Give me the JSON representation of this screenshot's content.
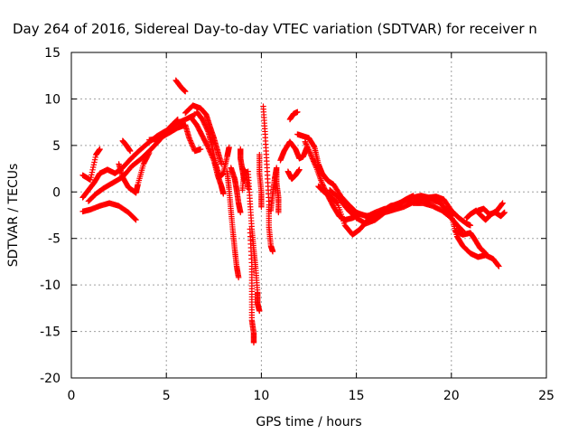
{
  "chart_data": {
    "type": "scatter",
    "title": "Day 264 of 2016, Sidereal Day-to-day VTEC variation (SDTVAR) for receiver n",
    "xlabel": "GPS time / hours",
    "ylabel": "SDTVAR / TECUs",
    "xlim": [
      0,
      25
    ],
    "ylim": [
      -20,
      15
    ],
    "xticks": [
      0,
      5,
      10,
      15,
      20,
      25
    ],
    "yticks": [
      -20,
      -15,
      -10,
      -5,
      0,
      5,
      10,
      15
    ],
    "xtick_labels": [
      "0",
      "5",
      "10",
      "15",
      "20",
      "25"
    ],
    "ytick_labels": [
      "-20",
      "-15",
      "-10",
      "-5",
      "0",
      "5",
      "10",
      "15"
    ],
    "grid": true,
    "marker": "plus",
    "color": "#ff0000",
    "series": [
      {
        "name": "",
        "tracks": [
          [
            [
              0.6,
              -2.1
            ],
            [
              1.0,
              -1.9
            ],
            [
              1.5,
              -1.5
            ],
            [
              2.0,
              -1.2
            ],
            [
              2.5,
              -1.5
            ],
            [
              3.0,
              -2.2
            ],
            [
              3.4,
              -3.0
            ]
          ],
          [
            [
              0.6,
              -0.6
            ],
            [
              0.9,
              0.2
            ],
            [
              1.2,
              1.0
            ],
            [
              1.5,
              2.0
            ],
            [
              1.9,
              2.4
            ],
            [
              2.3,
              2.0
            ],
            [
              2.7,
              2.6
            ],
            [
              3.1,
              3.5
            ],
            [
              3.5,
              4.3
            ],
            [
              4.0,
              5.2
            ],
            [
              4.5,
              6.0
            ],
            [
              5.0,
              6.6
            ],
            [
              5.5,
              7.3
            ],
            [
              6.0,
              7.8
            ],
            [
              6.5,
              8.3
            ]
          ],
          [
            [
              0.9,
              -1.0
            ],
            [
              1.3,
              -0.2
            ],
            [
              1.7,
              0.4
            ],
            [
              2.2,
              1.0
            ],
            [
              2.7,
              1.6
            ],
            [
              3.2,
              2.8
            ],
            [
              3.7,
              3.6
            ],
            [
              4.2,
              4.6
            ],
            [
              4.7,
              5.7
            ],
            [
              5.2,
              7.0
            ],
            [
              5.6,
              7.8
            ]
          ],
          [
            [
              0.6,
              1.8
            ],
            [
              1.0,
              1.3
            ],
            [
              1.3,
              4.0
            ],
            [
              1.5,
              4.6
            ]
          ],
          [
            [
              2.5,
              3.0
            ],
            [
              2.7,
              1.6
            ],
            [
              3.0,
              0.5
            ],
            [
              3.4,
              -0.1
            ],
            [
              3.5,
              0.8
            ],
            [
              3.8,
              3.0
            ],
            [
              4.1,
              4.2
            ]
          ],
          [
            [
              2.7,
              5.5
            ],
            [
              2.9,
              5.0
            ],
            [
              3.1,
              4.4
            ]
          ],
          [
            [
              4.1,
              5.6
            ],
            [
              4.6,
              5.7
            ],
            [
              5.1,
              6.3
            ],
            [
              5.6,
              6.9
            ],
            [
              6.0,
              7.2
            ],
            [
              6.2,
              5.8
            ],
            [
              6.5,
              4.4
            ],
            [
              6.8,
              4.6
            ]
          ],
          [
            [
              5.5,
              12.0
            ],
            [
              5.8,
              11.2
            ],
            [
              6.0,
              10.8
            ]
          ],
          [
            [
              6.0,
              8.5
            ],
            [
              6.4,
              9.3
            ],
            [
              6.8,
              9.0
            ],
            [
              7.1,
              8.3
            ],
            [
              7.3,
              7.0
            ],
            [
              7.5,
              5.8
            ],
            [
              7.7,
              4.4
            ],
            [
              7.9,
              3.0
            ]
          ],
          [
            [
              6.3,
              8.0
            ],
            [
              6.6,
              7.2
            ],
            [
              6.9,
              6.0
            ],
            [
              7.2,
              4.8
            ],
            [
              7.5,
              3.4
            ],
            [
              7.7,
              1.8
            ],
            [
              7.9,
              0.6
            ],
            [
              8.0,
              -0.2
            ]
          ],
          [
            [
              6.6,
              8.6
            ],
            [
              6.9,
              7.8
            ],
            [
              7.2,
              6.5
            ],
            [
              7.4,
              5.0
            ],
            [
              7.6,
              3.0
            ],
            [
              7.8,
              1.6
            ],
            [
              8.0,
              2.0
            ],
            [
              8.2,
              3.8
            ],
            [
              8.3,
              4.8
            ]
          ],
          [
            [
              8.2,
              2.2
            ],
            [
              8.3,
              0.3
            ],
            [
              8.4,
              -2.0
            ],
            [
              8.5,
              -4.2
            ],
            [
              8.6,
              -6.2
            ],
            [
              8.7,
              -8.0
            ],
            [
              8.8,
              -9.2
            ]
          ],
          [
            [
              8.4,
              2.6
            ],
            [
              8.6,
              1.4
            ],
            [
              8.7,
              0.2
            ],
            [
              8.8,
              -1.2
            ],
            [
              8.9,
              -2.2
            ]
          ],
          [
            [
              8.9,
              4.6
            ],
            [
              8.9,
              3.6
            ],
            [
              9.0,
              2.4
            ],
            [
              9.1,
              1.2
            ]
          ],
          [
            [
              9.0,
              0.2
            ],
            [
              9.1,
              2.4
            ],
            [
              9.2,
              2.0
            ],
            [
              9.3,
              0.4
            ]
          ],
          [
            [
              9.3,
              2.2
            ],
            [
              9.4,
              -1.0
            ],
            [
              9.5,
              -4.0
            ],
            [
              9.6,
              -6.2
            ],
            [
              9.7,
              -8.2
            ],
            [
              9.8,
              -10.8
            ],
            [
              9.8,
              -12.0
            ],
            [
              9.9,
              -12.8
            ]
          ],
          [
            [
              9.4,
              -4.0
            ],
            [
              9.5,
              -8.0
            ],
            [
              9.5,
              -11.0
            ],
            [
              9.5,
              -13.8
            ],
            [
              9.6,
              -15.2
            ],
            [
              9.6,
              -16.2
            ]
          ],
          [
            [
              9.9,
              4.0
            ],
            [
              9.9,
              2.0
            ],
            [
              10.0,
              0.0
            ],
            [
              10.0,
              -1.6
            ]
          ],
          [
            [
              10.1,
              9.2
            ],
            [
              10.2,
              6.2
            ],
            [
              10.3,
              2.6
            ],
            [
              10.4,
              -1.4
            ],
            [
              10.4,
              -3.8
            ],
            [
              10.5,
              -5.8
            ],
            [
              10.6,
              -6.4
            ]
          ],
          [
            [
              10.5,
              -2.0
            ],
            [
              10.6,
              -0.2
            ],
            [
              10.7,
              1.4
            ],
            [
              10.8,
              2.6
            ],
            [
              10.8,
              1.0
            ],
            [
              10.9,
              -0.6
            ],
            [
              10.9,
              -2.2
            ]
          ],
          [
            [
              11.0,
              3.4
            ],
            [
              11.2,
              4.4
            ],
            [
              11.5,
              5.4
            ],
            [
              11.8,
              4.6
            ],
            [
              12.0,
              3.6
            ],
            [
              12.2,
              3.8
            ],
            [
              12.4,
              4.8
            ]
          ],
          [
            [
              11.4,
              2.2
            ],
            [
              11.6,
              1.4
            ],
            [
              11.8,
              1.8
            ],
            [
              12.0,
              2.4
            ]
          ],
          [
            [
              11.5,
              7.8
            ],
            [
              11.7,
              8.4
            ],
            [
              11.9,
              8.6
            ]
          ],
          [
            [
              11.9,
              6.2
            ],
            [
              12.2,
              6.0
            ],
            [
              12.5,
              5.8
            ],
            [
              12.8,
              4.8
            ],
            [
              13.0,
              3.0
            ],
            [
              13.2,
              2.0
            ],
            [
              13.5,
              1.2
            ],
            [
              13.8,
              0.8
            ],
            [
              14.2,
              -0.5
            ],
            [
              14.6,
              -1.4
            ],
            [
              15.0,
              -2.2
            ],
            [
              15.5,
              -2.6
            ],
            [
              16.0,
              -2.4
            ],
            [
              16.5,
              -2.0
            ],
            [
              17.0,
              -1.6
            ]
          ],
          [
            [
              12.3,
              5.4
            ],
            [
              12.6,
              4.0
            ],
            [
              12.9,
              2.6
            ],
            [
              13.2,
              0.9
            ],
            [
              13.5,
              -0.4
            ],
            [
              13.8,
              -1.6
            ],
            [
              14.1,
              -2.6
            ],
            [
              14.4,
              -3.0
            ],
            [
              14.8,
              -2.8
            ],
            [
              15.2,
              -2.4
            ],
            [
              15.6,
              -2.6
            ],
            [
              16.0,
              -2.2
            ],
            [
              16.5,
              -1.8
            ]
          ],
          [
            [
              13.0,
              0.6
            ],
            [
              13.3,
              0.0
            ],
            [
              13.6,
              -0.4
            ],
            [
              14.0,
              -1.2
            ],
            [
              14.4,
              -3.6
            ],
            [
              14.8,
              -4.6
            ],
            [
              15.2,
              -4.0
            ],
            [
              15.6,
              -3.0
            ],
            [
              16.0,
              -2.6
            ],
            [
              16.4,
              -2.0
            ],
            [
              16.8,
              -1.5
            ],
            [
              17.2,
              -1.3
            ],
            [
              17.6,
              -0.8
            ],
            [
              18.0,
              -0.4
            ]
          ],
          [
            [
              13.6,
              0.2
            ],
            [
              14.0,
              -0.5
            ],
            [
              14.5,
              -1.8
            ],
            [
              15.0,
              -2.8
            ],
            [
              15.5,
              -3.4
            ],
            [
              16.0,
              -3.0
            ],
            [
              16.5,
              -2.2
            ],
            [
              17.0,
              -1.9
            ],
            [
              17.5,
              -1.6
            ],
            [
              18.0,
              -1.1
            ],
            [
              18.5,
              -0.8
            ],
            [
              19.0,
              -0.9
            ],
            [
              19.5,
              -1.2
            ]
          ],
          [
            [
              17.0,
              -1.4
            ],
            [
              17.5,
              -1.0
            ],
            [
              18.0,
              -0.6
            ],
            [
              18.4,
              -0.4
            ],
            [
              18.8,
              -0.6
            ],
            [
              19.2,
              -0.5
            ],
            [
              19.6,
              -0.8
            ],
            [
              20.0,
              -2.0
            ],
            [
              20.4,
              -2.8
            ],
            [
              20.8,
              -3.4
            ],
            [
              21.0,
              -3.6
            ]
          ],
          [
            [
              18.0,
              -1.2
            ],
            [
              18.5,
              -1.2
            ],
            [
              19.0,
              -1.5
            ],
            [
              19.5,
              -2.0
            ],
            [
              20.0,
              -2.8
            ],
            [
              20.4,
              -3.8
            ],
            [
              20.6,
              -4.2
            ]
          ],
          [
            [
              19.2,
              -0.8
            ],
            [
              19.6,
              -1.6
            ],
            [
              20.0,
              -2.6
            ],
            [
              20.3,
              -4.8
            ],
            [
              20.6,
              -5.8
            ],
            [
              21.0,
              -6.6
            ],
            [
              21.4,
              -7.0
            ],
            [
              21.8,
              -6.8
            ],
            [
              22.2,
              -7.2
            ],
            [
              22.5,
              -8.0
            ]
          ],
          [
            [
              20.2,
              -4.2
            ],
            [
              20.6,
              -4.6
            ],
            [
              21.0,
              -4.4
            ],
            [
              21.2,
              -5.0
            ],
            [
              21.5,
              -6.0
            ],
            [
              21.8,
              -6.6
            ]
          ],
          [
            [
              20.8,
              -2.8
            ],
            [
              21.0,
              -2.4
            ],
            [
              21.3,
              -2.0
            ],
            [
              21.6,
              -2.6
            ],
            [
              21.8,
              -3.0
            ],
            [
              22.1,
              -2.4
            ],
            [
              22.4,
              -2.0
            ],
            [
              22.7,
              -1.2
            ]
          ],
          [
            [
              21.4,
              -2.0
            ],
            [
              21.7,
              -1.8
            ],
            [
              22.0,
              -2.4
            ],
            [
              22.3,
              -2.2
            ],
            [
              22.6,
              -2.6
            ],
            [
              22.8,
              -2.2
            ]
          ]
        ]
      }
    ]
  }
}
